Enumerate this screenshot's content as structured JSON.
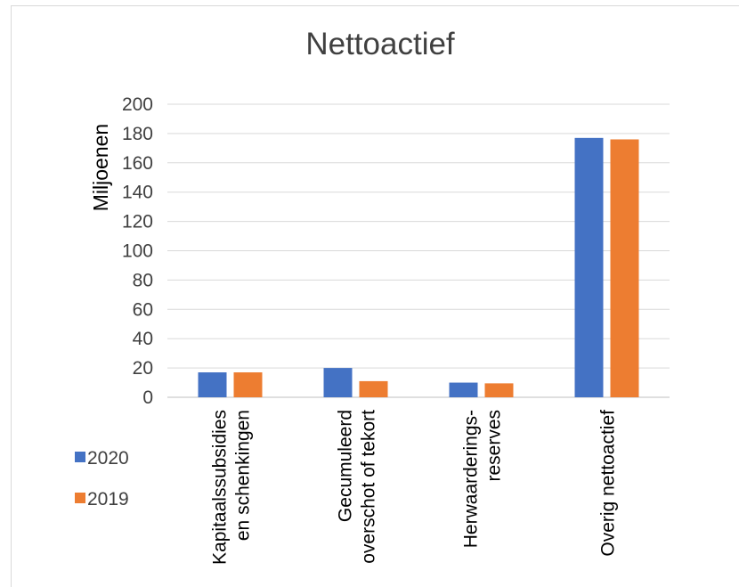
{
  "chart_data": {
    "type": "bar",
    "title": "Nettoactief",
    "ylabel": "Miljoenen",
    "xlabel": "",
    "ylim": [
      0,
      200
    ],
    "yticks": [
      0,
      20,
      40,
      60,
      80,
      100,
      120,
      140,
      160,
      180,
      200
    ],
    "categories": [
      [
        "Kapitaalssubsidies",
        "en schenkingen"
      ],
      [
        "Gecumuleerd",
        "overschot of tekort"
      ],
      [
        "Herwaarderings-",
        "reserves"
      ],
      [
        "Overig nettoactief"
      ]
    ],
    "series": [
      {
        "name": "2020",
        "color": "#4472C4",
        "values": [
          17,
          20,
          10,
          177
        ]
      },
      {
        "name": "2019",
        "color": "#ED7D31",
        "values": [
          17,
          11,
          9.5,
          176
        ]
      }
    ],
    "grid": true,
    "legend": "bottom-left"
  }
}
